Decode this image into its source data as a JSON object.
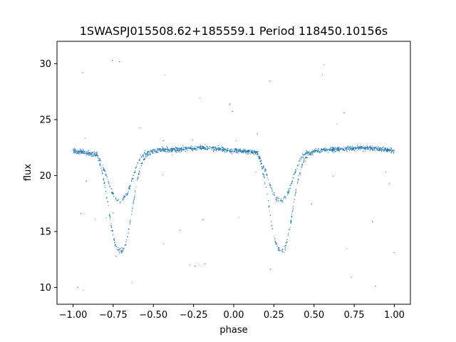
{
  "chart_data": {
    "type": "scatter",
    "title": "1SWASPJ015508.62+185559.1 Period 118450.10156s",
    "xlabel": "phase",
    "ylabel": "flux",
    "xlim": [
      -1.1,
      1.1
    ],
    "ylim": [
      8.5,
      32
    ],
    "xticks": [
      -1.0,
      -0.75,
      -0.5,
      -0.25,
      0.0,
      0.25,
      0.5,
      0.75,
      1.0
    ],
    "xtick_labels": [
      "−1.00",
      "−0.75",
      "−0.50",
      "−0.25",
      "0.00",
      "0.25",
      "0.50",
      "0.75",
      "1.00"
    ],
    "yticks": [
      10,
      15,
      20,
      25,
      30
    ],
    "ytick_labels": [
      "10",
      "15",
      "20",
      "25",
      "30"
    ],
    "grid": false,
    "marker_color": "#1f77b4",
    "series": [
      {
        "phase": [
          -1.0,
          -0.95,
          -0.9,
          -0.85,
          -0.82,
          -0.8,
          -0.78,
          -0.76,
          -0.74,
          -0.72,
          -0.7,
          -0.68,
          -0.66,
          -0.64,
          -0.62,
          -0.6,
          -0.58,
          -0.55,
          -0.5,
          -0.45,
          -0.4,
          -0.3,
          -0.2,
          -0.1,
          0.0,
          0.05,
          0.1,
          0.15,
          0.18,
          0.2,
          0.22,
          0.24,
          0.26,
          0.28,
          0.3,
          0.32,
          0.34,
          0.36,
          0.38,
          0.4,
          0.42,
          0.45,
          0.5,
          0.55,
          0.6,
          0.7,
          0.8,
          0.9,
          1.0
        ],
        "flux_upper_branch": [
          22.2,
          22.1,
          22.0,
          21.8,
          21.0,
          20.3,
          19.5,
          18.6,
          18.0,
          17.8,
          17.7,
          18.0,
          18.5,
          19.3,
          20.2,
          21.0,
          21.6,
          22.0,
          22.2,
          22.3,
          22.3,
          22.4,
          22.5,
          22.4,
          22.2,
          22.2,
          22.1,
          22.0,
          21.0,
          20.3,
          19.5,
          18.6,
          18.0,
          17.8,
          17.7,
          18.0,
          18.5,
          19.3,
          20.2,
          21.0,
          21.6,
          22.0,
          22.2,
          22.3,
          22.3,
          22.4,
          22.5,
          22.4,
          22.2
        ],
        "flux_lower_branch": [
          22.2,
          22.1,
          22.0,
          21.8,
          20.5,
          19.0,
          17.2,
          15.3,
          14.0,
          13.4,
          13.2,
          13.5,
          14.6,
          16.2,
          18.0,
          19.6,
          20.8,
          21.7,
          22.2,
          22.3,
          22.3,
          22.4,
          22.5,
          22.4,
          22.2,
          22.2,
          22.1,
          22.0,
          20.5,
          19.0,
          17.2,
          15.3,
          14.0,
          13.4,
          13.2,
          13.5,
          14.6,
          16.2,
          18.0,
          19.6,
          20.8,
          21.7,
          22.2,
          22.3,
          22.3,
          22.4,
          22.5,
          22.4,
          22.2
        ]
      }
    ]
  }
}
